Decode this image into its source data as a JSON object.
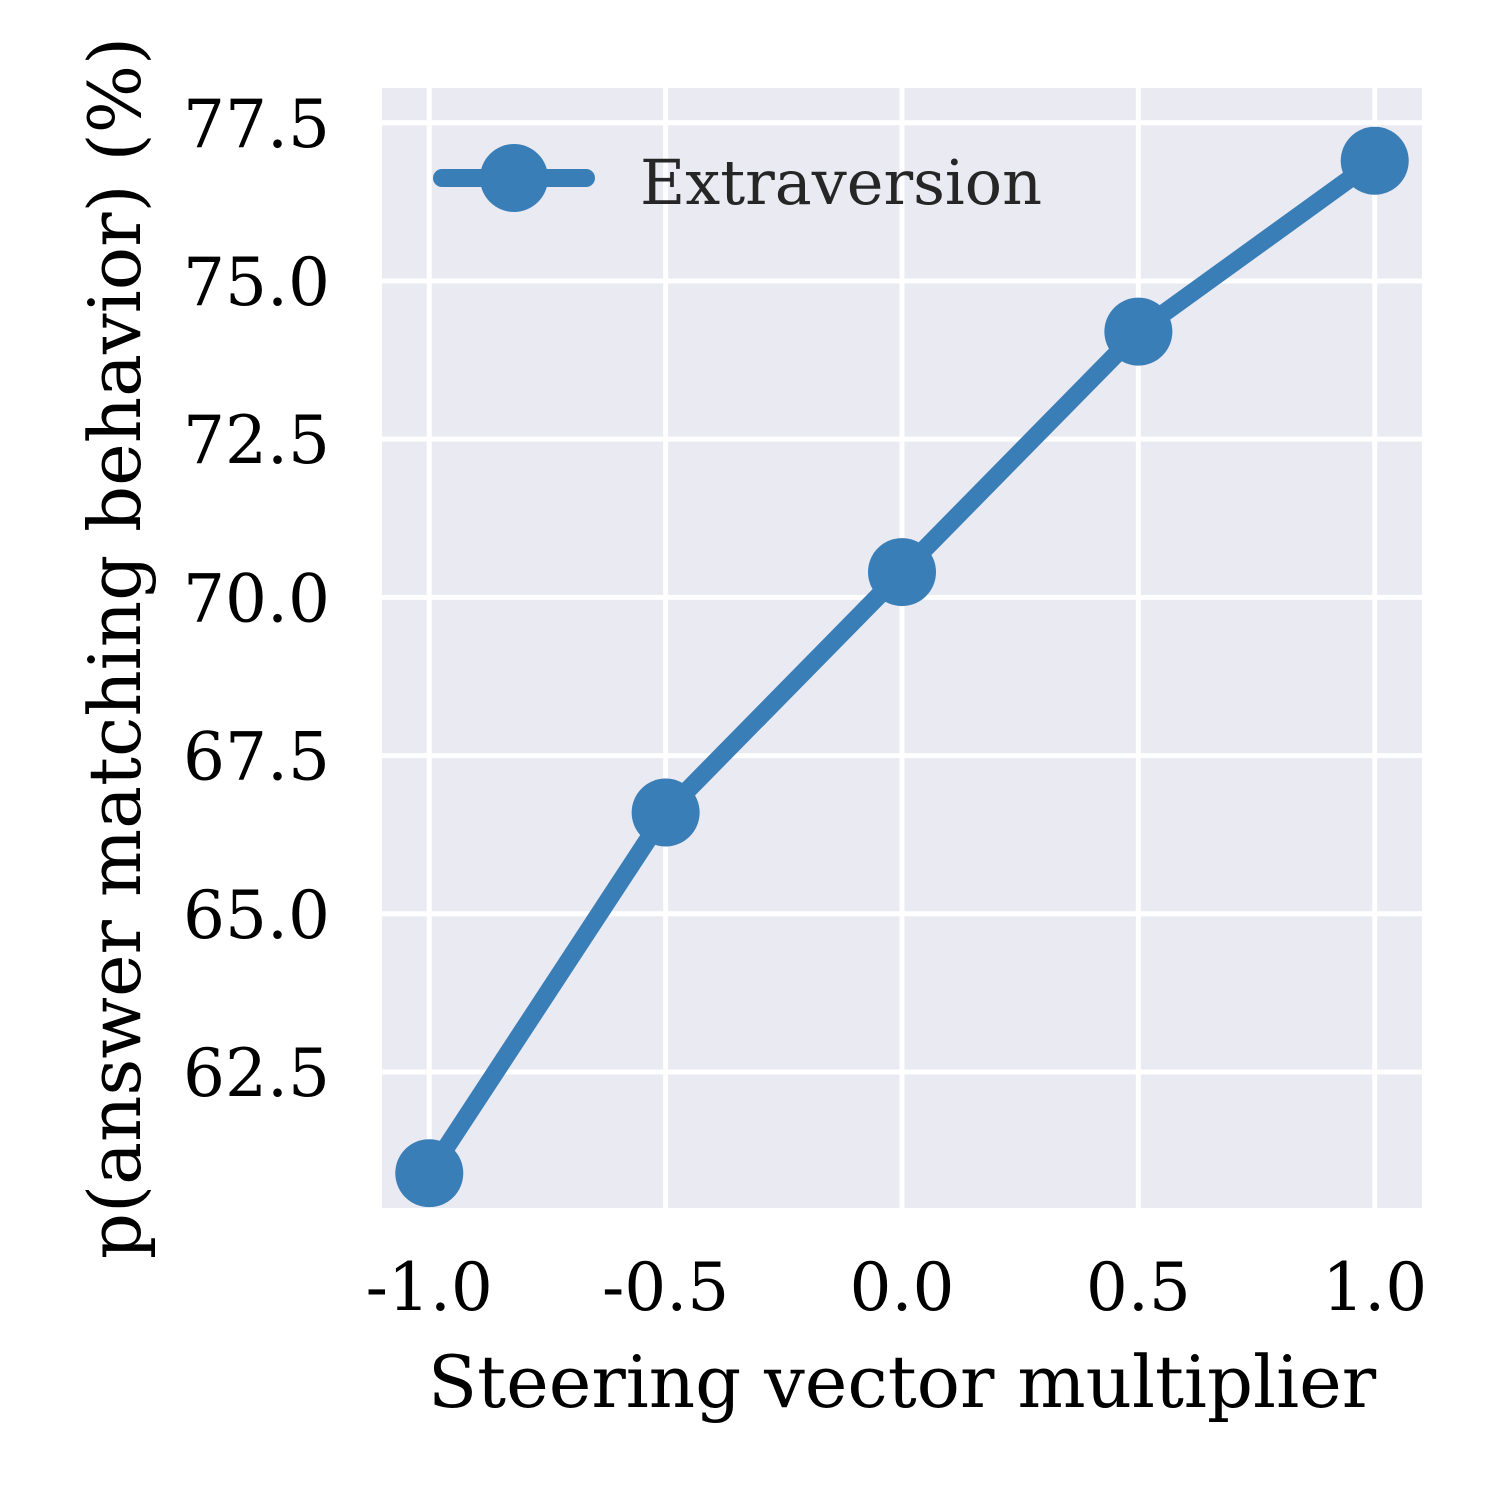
{
  "chart_data": {
    "type": "line",
    "x": [
      -1.0,
      -0.5,
      0.0,
      0.5,
      1.0
    ],
    "x_tick_labels": [
      "-1.0",
      "-0.5",
      "0.0",
      "0.5",
      "1.0"
    ],
    "y_tick_values": [
      62.5,
      65.0,
      67.5,
      70.0,
      72.5,
      75.0,
      77.5
    ],
    "y_tick_labels": [
      "62.5",
      "65.0",
      "67.5",
      "70.0",
      "72.5",
      "75.0",
      "77.5"
    ],
    "series": [
      {
        "name": "Extraversion",
        "values": [
          60.9,
          66.6,
          70.4,
          74.2,
          76.9
        ],
        "color": "#3a7eb8"
      }
    ],
    "xlabel": "Steering vector multiplier",
    "ylabel": "p(answer matching behavior) (%)",
    "xlim": [
      -1.1,
      1.1
    ],
    "ylim": [
      60.35,
      78.05
    ],
    "grid": true,
    "legend_position": "top-left",
    "colors": {
      "plot_background": "#eaeaf2",
      "grid": "#ffffff",
      "text": "#000000",
      "legend_text": "#262626"
    }
  }
}
